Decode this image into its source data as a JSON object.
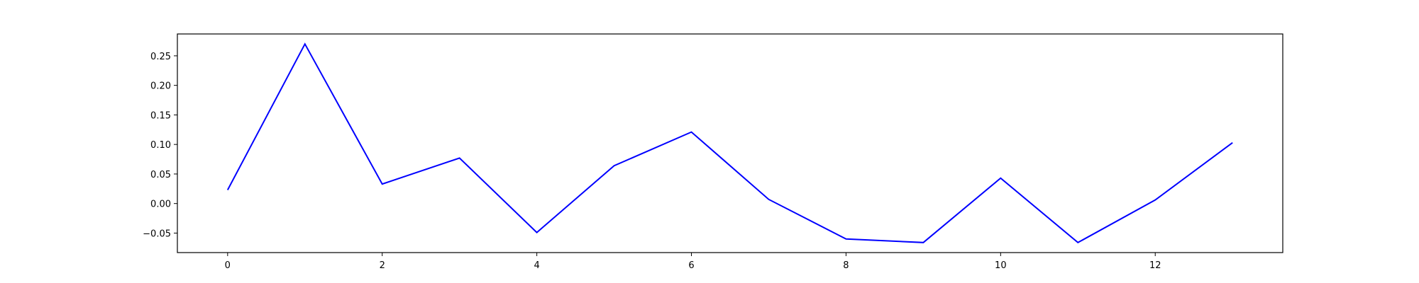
{
  "chart_data": {
    "type": "line",
    "title": "",
    "xlabel": "",
    "ylabel": "",
    "xlim": [
      -0.65,
      13.65
    ],
    "ylim": [
      -0.083,
      0.287
    ],
    "x_ticks": [
      0,
      2,
      4,
      6,
      8,
      10,
      12
    ],
    "y_ticks": [
      -0.05,
      0.0,
      0.05,
      0.1,
      0.15,
      0.2,
      0.25
    ],
    "y_tick_labels": [
      "−0.05",
      "0.00",
      "0.05",
      "0.10",
      "0.15",
      "0.20",
      "0.25"
    ],
    "grid": false,
    "legend": "none",
    "series": [
      {
        "color": "#0000ff",
        "x": [
          0,
          1,
          2,
          3,
          4,
          5,
          6,
          7,
          8,
          9,
          10,
          11,
          12,
          13
        ],
        "values": [
          0.023,
          0.27,
          0.033,
          0.077,
          -0.049,
          0.064,
          0.121,
          0.007,
          -0.06,
          -0.066,
          0.043,
          -0.066,
          0.006,
          0.103
        ]
      }
    ]
  }
}
